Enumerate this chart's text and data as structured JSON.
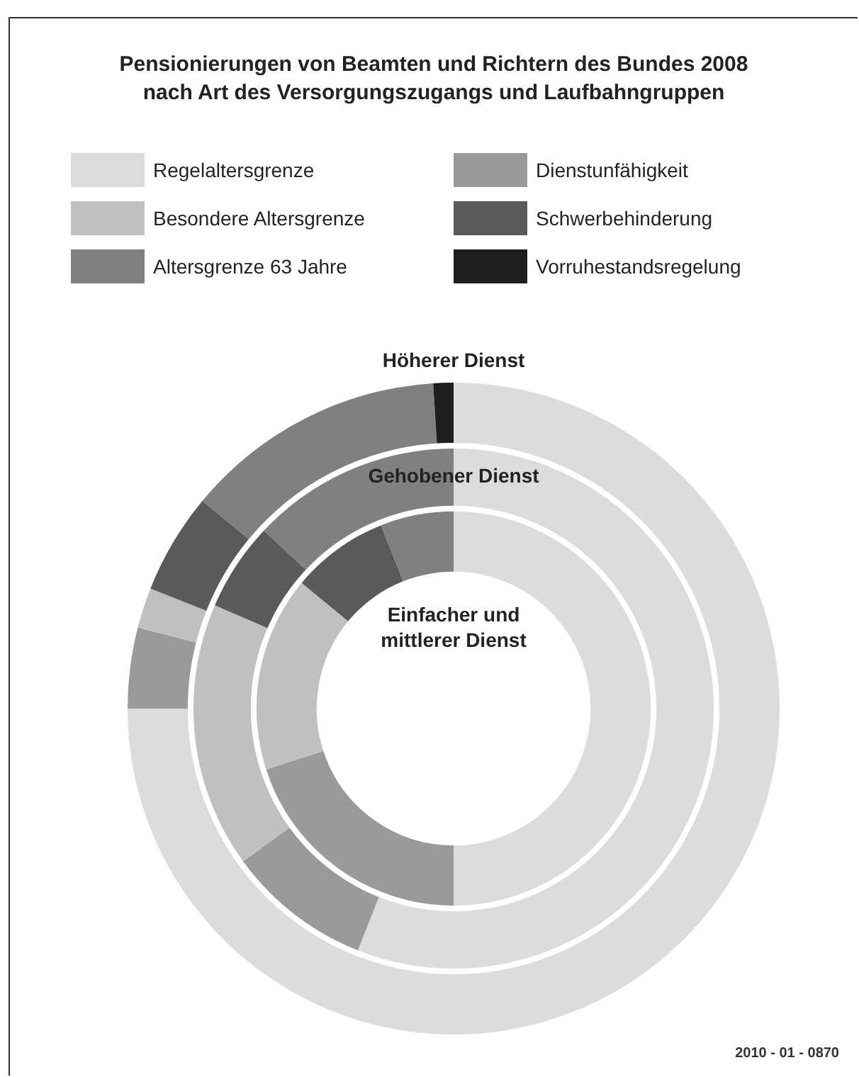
{
  "chart_data": {
    "type": "donut",
    "title": "Pensionierungen von Beamten und Richtern des Bundes 2008\nnach Art des Versorgungszugangs und Laufbahngruppen",
    "categories": [
      "Regelaltersgrenze",
      "Dienstunfähigkeit",
      "Besondere Altersgrenze",
      "Schwerbehinderung",
      "Altersgrenze 63 Jahre",
      "Vorruhestandsregelung"
    ],
    "colors": [
      "#dcdcdc",
      "#9a9a9a",
      "#c0c0c0",
      "#5a5a5a",
      "#808080",
      "#1e1e1e"
    ],
    "series": [
      {
        "name": "Höherer Dienst",
        "values": [
          75,
          4,
          2,
          5,
          13,
          1
        ]
      },
      {
        "name": "Gehobener Dienst",
        "values": [
          56,
          9,
          16.5,
          5.5,
          13,
          0
        ]
      },
      {
        "name": "Einfacher und mittlerer Dienst",
        "values": [
          50,
          20,
          16,
          8,
          6,
          0
        ]
      }
    ],
    "legend": "top",
    "annotations": [
      "2010 - 01 - 0870"
    ]
  }
}
